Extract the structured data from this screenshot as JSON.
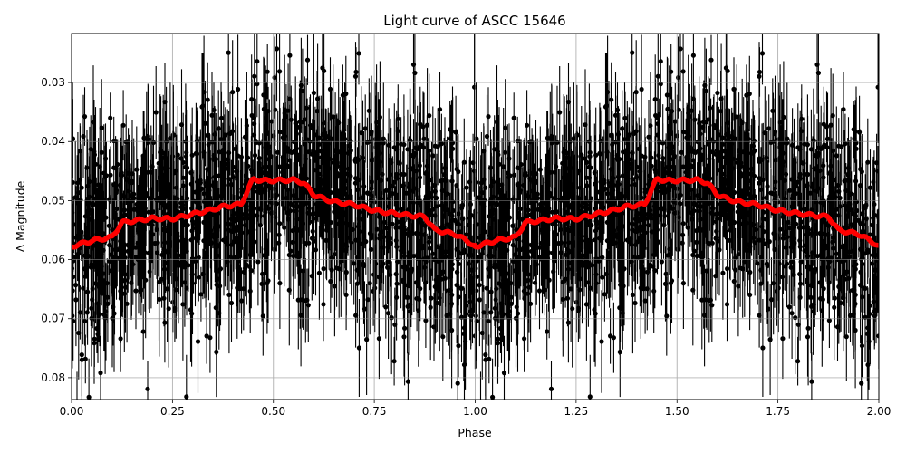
{
  "chart_data": {
    "type": "scatter",
    "title": "Light curve of ASCC 15646",
    "xlabel": "Phase",
    "ylabel": "Δ Magnitude",
    "xlim": [
      0.0,
      2.0
    ],
    "ylim": [
      0.0837,
      0.0217
    ],
    "y_inverted": true,
    "grid": true,
    "legend": null,
    "x_ticks": [
      "0.00",
      "0.25",
      "0.50",
      "0.75",
      "1.00",
      "1.25",
      "1.50",
      "1.75",
      "2.00"
    ],
    "x_tick_values": [
      0.0,
      0.25,
      0.5,
      0.75,
      1.0,
      1.25,
      1.5,
      1.75,
      2.0
    ],
    "y_ticks": [
      "0.03",
      "0.04",
      "0.05",
      "0.06",
      "0.07",
      "0.08"
    ],
    "y_tick_values": [
      0.03,
      0.04,
      0.05,
      0.06,
      0.07,
      0.08
    ],
    "series": [
      {
        "name": "observations",
        "style": "black points with vertical error bars",
        "color": "#000000",
        "description": "dense scatter of phase-folded measurements, bulk between ~0.035 and ~0.072 mag, outliers reaching beyond plot limits; pattern repeated for phase 1-2",
        "typical_error_bar": 0.006
      },
      {
        "name": "binned mean",
        "style": "thick red line",
        "color": "#ff0000",
        "x": [
          0.0,
          0.05,
          0.1,
          0.125,
          0.15,
          0.2,
          0.25,
          0.3,
          0.35,
          0.375,
          0.4,
          0.42,
          0.45,
          0.47,
          0.5,
          0.55,
          0.575,
          0.6,
          0.625,
          0.65,
          0.7,
          0.75,
          0.8,
          0.85,
          0.875,
          0.9,
          0.95,
          0.98,
          1.0
        ],
        "y": [
          0.0578,
          0.0568,
          0.0562,
          0.0537,
          0.0535,
          0.053,
          0.0531,
          0.0523,
          0.0515,
          0.051,
          0.0508,
          0.0506,
          0.0463,
          0.0466,
          0.0466,
          0.0465,
          0.047,
          0.049,
          0.0497,
          0.0502,
          0.0507,
          0.0517,
          0.0522,
          0.0526,
          0.0527,
          0.055,
          0.0557,
          0.0568,
          0.0578
        ],
        "repeats_with_period": 1.0
      }
    ]
  }
}
